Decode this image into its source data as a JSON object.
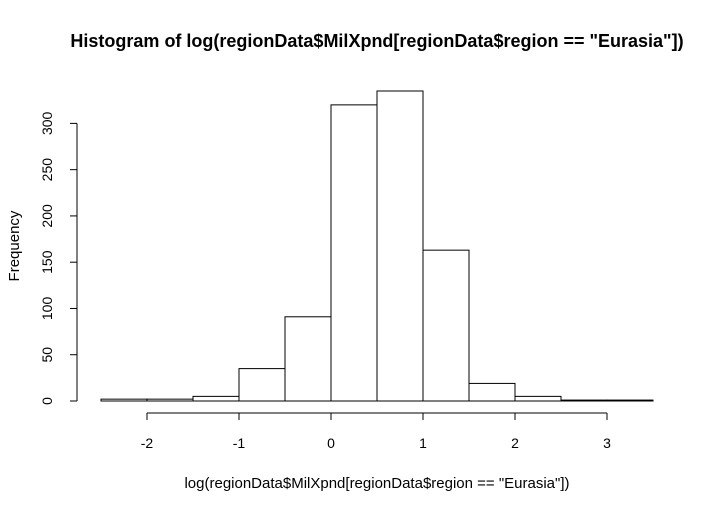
{
  "chart_data": {
    "type": "bar",
    "title": "Histogram of log(regionData$MilXpnd[regionData$region == \"Eurasia\"])",
    "xlabel": "log(regionData$MilXpnd[regionData$region == \"Eurasia\"])",
    "ylabel": "Frequency",
    "bin_edges": [
      -2.5,
      -2.0,
      -1.5,
      -1.0,
      -0.5,
      0.0,
      0.5,
      1.0,
      1.5,
      2.0,
      2.5,
      3.0,
      3.5
    ],
    "values": [
      2,
      2,
      5,
      35,
      91,
      320,
      335,
      163,
      19,
      5,
      1,
      1
    ],
    "xlim": [
      -2.5,
      3.5
    ],
    "ylim": [
      0,
      335
    ],
    "xticks": [
      -2,
      -1,
      0,
      1,
      2,
      3
    ],
    "xtick_labels": [
      "-2",
      "-1",
      "0",
      "1",
      "2",
      "3"
    ],
    "yticks": [
      0,
      50,
      100,
      150,
      200,
      250,
      300
    ],
    "ytick_labels": [
      "0",
      "50",
      "100",
      "150",
      "200",
      "250",
      "300"
    ],
    "grid": false,
    "legend": "none"
  }
}
